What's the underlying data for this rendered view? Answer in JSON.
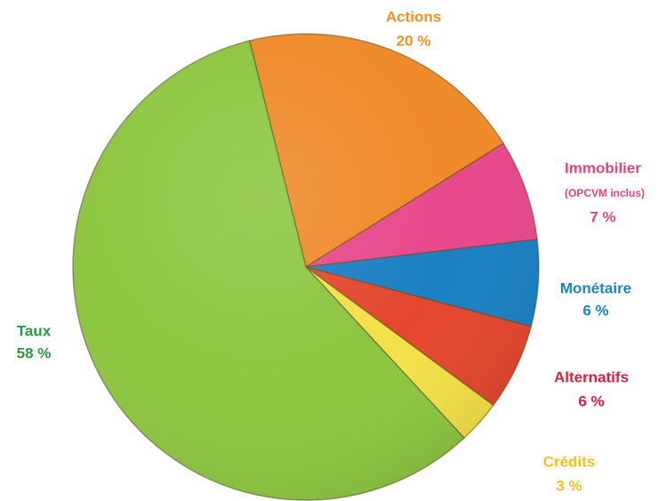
{
  "chart_data": {
    "type": "pie",
    "categories": [
      "Actions",
      "Immobilier",
      "Monétaire",
      "Alternatifs",
      "Crédits",
      "Taux"
    ],
    "values": [
      20,
      7,
      6,
      6,
      3,
      58
    ],
    "value_labels": [
      "20 %",
      "7 %",
      "6 %",
      "6 %",
      "3 %",
      "58 %"
    ],
    "colors": [
      "#ef8a2a",
      "#e8488b",
      "#1b80c3",
      "#e4472e",
      "#f4e048",
      "#8dc641"
    ],
    "label_colors": [
      "#f0921e",
      "#e0457f",
      "#1a85c8",
      "#d6203f",
      "#f2c21a",
      "#2a9a48"
    ],
    "annotation": "(OPCVM inclus)"
  }
}
